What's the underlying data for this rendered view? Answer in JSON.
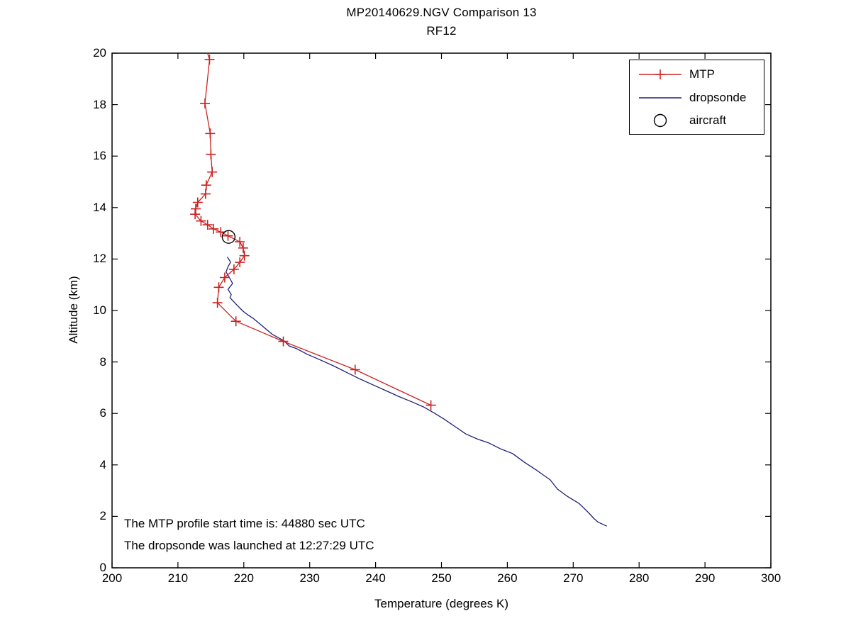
{
  "title": {
    "line1": "MP20140629.NGV Comparison 13",
    "line2": "RF12"
  },
  "annotations": {
    "line1": "The MTP profile start time is: 44880 sec UTC",
    "line2": "The dropsonde was launched at 12:27:29 UTC"
  },
  "legend": {
    "items": [
      {
        "label": "MTP",
        "color": "#cc2222",
        "sample": "line-plus"
      },
      {
        "label": "dropsonde",
        "color": "#1f1f7a",
        "sample": "line"
      },
      {
        "label": "aircraft",
        "color": "#000000",
        "sample": "circle"
      }
    ]
  },
  "colors": {
    "mtp": "#cc2222",
    "dropsonde": "#1f1f7a",
    "aircraft": "#000000",
    "axis": "#000000",
    "background": "#ffffff"
  },
  "chart_data": {
    "type": "line",
    "title": "MP20140629.NGV Comparison 13",
    "subtitle": "RF12",
    "xlabel": "Temperature (degrees K)",
    "ylabel": "Altitude (km)",
    "xlim": [
      200,
      300
    ],
    "ylim": [
      0,
      20
    ],
    "xticks": [
      200,
      210,
      220,
      230,
      240,
      250,
      260,
      270,
      280,
      290,
      300
    ],
    "yticks": [
      0,
      2,
      4,
      6,
      8,
      10,
      12,
      14,
      16,
      18,
      20
    ],
    "grid": false,
    "legend_position": "top-right",
    "series": [
      {
        "name": "MTP",
        "color": "#cc2222",
        "marker": "plus",
        "line": [
          [
            214.5,
            20.0
          ],
          [
            214.8,
            19.75
          ],
          [
            214.1,
            18.05
          ],
          [
            214.9,
            16.88
          ],
          [
            215.0,
            16.07
          ],
          [
            215.2,
            15.38
          ],
          [
            214.3,
            14.87
          ],
          [
            214.2,
            14.53
          ],
          [
            213.0,
            14.2
          ],
          [
            212.7,
            13.95
          ],
          [
            212.6,
            13.74
          ],
          [
            213.5,
            13.48
          ],
          [
            214.5,
            13.33
          ],
          [
            215.4,
            13.17
          ],
          [
            216.5,
            13.05
          ],
          [
            217.6,
            12.9
          ],
          [
            219.4,
            12.67
          ],
          [
            219.9,
            12.43
          ],
          [
            220.1,
            12.13
          ],
          [
            219.4,
            11.87
          ],
          [
            218.5,
            11.6
          ],
          [
            217.1,
            11.28
          ],
          [
            216.2,
            10.9
          ],
          [
            216.0,
            10.3
          ],
          [
            218.8,
            9.58
          ],
          [
            226.0,
            8.8
          ],
          [
            236.9,
            7.7
          ],
          [
            248.4,
            6.32
          ]
        ],
        "markers": [
          [
            214.8,
            19.75
          ],
          [
            214.1,
            18.05
          ],
          [
            214.9,
            16.88
          ],
          [
            215.0,
            16.07
          ],
          [
            215.2,
            15.38
          ],
          [
            214.3,
            14.87
          ],
          [
            214.2,
            14.53
          ],
          [
            213.0,
            14.2
          ],
          [
            212.7,
            13.95
          ],
          [
            212.6,
            13.74
          ],
          [
            213.5,
            13.48
          ],
          [
            214.5,
            13.33
          ],
          [
            215.4,
            13.17
          ],
          [
            216.5,
            13.05
          ],
          [
            217.6,
            12.9
          ],
          [
            219.4,
            12.67
          ],
          [
            219.9,
            12.43
          ],
          [
            220.1,
            12.13
          ],
          [
            219.4,
            11.87
          ],
          [
            218.5,
            11.6
          ],
          [
            217.1,
            11.28
          ],
          [
            216.2,
            10.9
          ],
          [
            216.0,
            10.3
          ],
          [
            218.8,
            9.58
          ],
          [
            226.0,
            8.8
          ],
          [
            236.9,
            7.7
          ],
          [
            248.4,
            6.32
          ]
        ]
      },
      {
        "name": "dropsonde",
        "color": "#1f1f7a",
        "marker": "none",
        "line": [
          [
            217.5,
            12.08
          ],
          [
            218.0,
            11.88
          ],
          [
            217.6,
            11.7
          ],
          [
            217.3,
            11.5
          ],
          [
            217.8,
            11.28
          ],
          [
            218.3,
            11.05
          ],
          [
            217.6,
            10.82
          ],
          [
            218.1,
            10.62
          ],
          [
            217.9,
            10.5
          ],
          [
            218.7,
            10.28
          ],
          [
            219.3,
            10.12
          ],
          [
            219.9,
            9.97
          ],
          [
            220.5,
            9.85
          ],
          [
            221.5,
            9.68
          ],
          [
            222.9,
            9.38
          ],
          [
            224.3,
            9.08
          ],
          [
            226.1,
            8.82
          ],
          [
            226.9,
            8.62
          ],
          [
            228.0,
            8.52
          ],
          [
            229.6,
            8.3
          ],
          [
            231.6,
            8.08
          ],
          [
            233.6,
            7.85
          ],
          [
            235.7,
            7.58
          ],
          [
            237.7,
            7.33
          ],
          [
            239.7,
            7.1
          ],
          [
            241.7,
            6.87
          ],
          [
            243.6,
            6.65
          ],
          [
            245.6,
            6.44
          ],
          [
            247.3,
            6.25
          ],
          [
            249.0,
            6.0
          ],
          [
            250.4,
            5.78
          ],
          [
            252.0,
            5.5
          ],
          [
            253.7,
            5.2
          ],
          [
            255.5,
            5.0
          ],
          [
            257.2,
            4.85
          ],
          [
            259.0,
            4.62
          ],
          [
            260.8,
            4.44
          ],
          [
            262.6,
            4.1
          ],
          [
            264.4,
            3.8
          ],
          [
            266.5,
            3.42
          ],
          [
            267.6,
            3.06
          ],
          [
            269.1,
            2.78
          ],
          [
            270.9,
            2.5
          ],
          [
            272.3,
            2.15
          ],
          [
            273.2,
            1.9
          ],
          [
            273.8,
            1.77
          ],
          [
            275.1,
            1.62
          ]
        ],
        "markers": []
      },
      {
        "name": "aircraft",
        "color": "#000000",
        "marker": "circle",
        "line": [],
        "markers": [
          [
            217.7,
            12.86
          ]
        ]
      }
    ]
  }
}
